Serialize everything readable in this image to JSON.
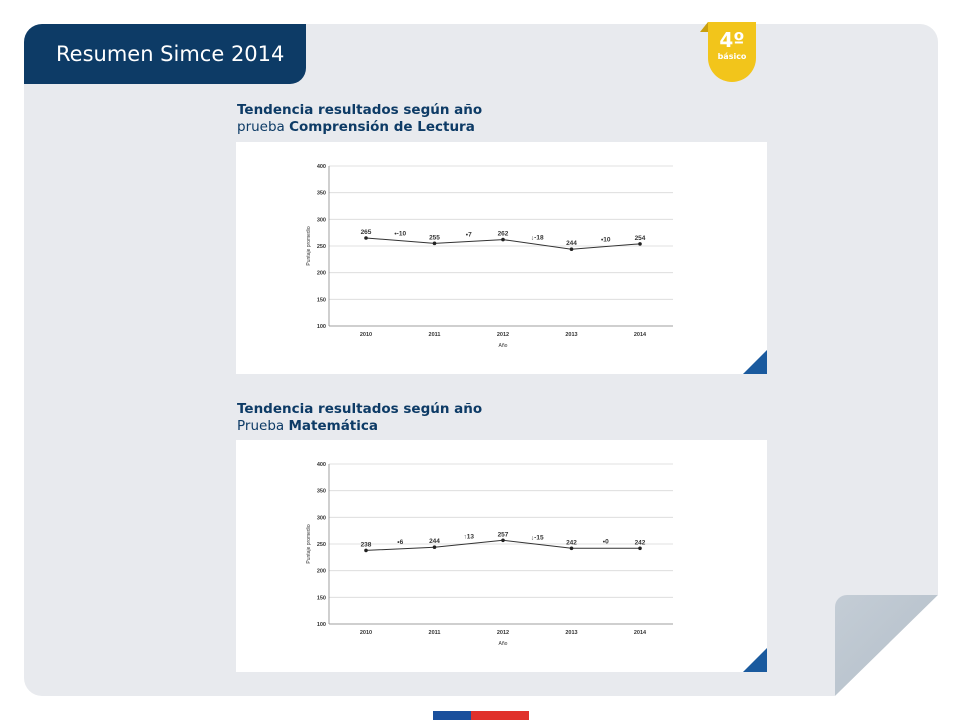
{
  "header": {
    "title": "Resumen Simce 2014"
  },
  "badge": {
    "grade": "4º",
    "level": "básico"
  },
  "colors": {
    "navy": "#0d3b66",
    "gold": "#f2c51b",
    "accent_blue": "#1a5a9e",
    "flag_blue": "#1a4f9c",
    "flag_red": "#e0312b"
  },
  "sections": [
    {
      "title": "Tendencia resultados según año",
      "prefix": "prueba",
      "subject": "Comprensión de Lectura"
    },
    {
      "title": "Tendencia resultados según año",
      "prefix": "Prueba",
      "subject": "Matemática"
    }
  ],
  "chart_data": [
    {
      "type": "line",
      "xlabel": "Año",
      "ylabel": "Puntaje promedio",
      "ylim": [
        100,
        400
      ],
      "yticks": [
        "100",
        "150",
        "200",
        "250",
        "300",
        "350",
        "400"
      ],
      "categories": [
        "2010",
        "2011",
        "2012",
        "2013",
        "2014"
      ],
      "values": [
        265,
        255,
        262,
        244,
        254
      ],
      "value_labels": [
        "265",
        "255",
        "262",
        "244",
        "254"
      ],
      "deltas": [
        {
          "glyph": "•",
          "text": "-10"
        },
        {
          "glyph": "•",
          "text": "7"
        },
        {
          "glyph": "↓",
          "text": "-18"
        },
        {
          "glyph": "•",
          "text": "10"
        }
      ],
      "grid": true
    },
    {
      "type": "line",
      "xlabel": "Año",
      "ylabel": "Puntaje promedio",
      "ylim": [
        100,
        400
      ],
      "yticks": [
        "100",
        "150",
        "200",
        "250",
        "300",
        "350",
        "400"
      ],
      "categories": [
        "2010",
        "2011",
        "2012",
        "2013",
        "2014"
      ],
      "values": [
        238,
        244,
        257,
        242,
        242
      ],
      "value_labels": [
        "238",
        "244",
        "257",
        "242",
        "242"
      ],
      "deltas": [
        {
          "glyph": "•",
          "text": "6"
        },
        {
          "glyph": "↑",
          "text": "13"
        },
        {
          "glyph": "↓",
          "text": "-15"
        },
        {
          "glyph": "•",
          "text": "0"
        }
      ],
      "grid": true
    }
  ]
}
